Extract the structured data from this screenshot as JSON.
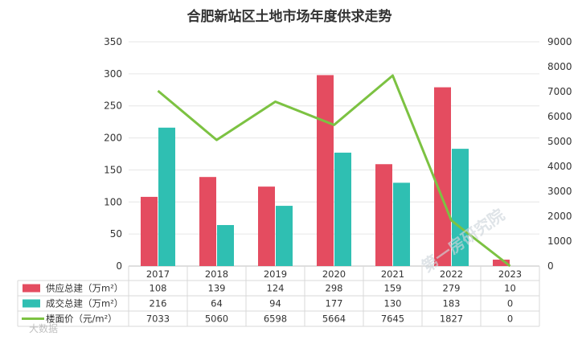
{
  "chart_data": {
    "type": "bar",
    "title": "合肥新站区土地市场年度供求走势",
    "categories": [
      "2017",
      "2018",
      "2019",
      "2020",
      "2021",
      "2022",
      "2023"
    ],
    "series": [
      {
        "name": "供应总建（万m²）",
        "type": "bar",
        "axis": "left",
        "color": "#e44c60",
        "values": [
          108,
          139,
          124,
          298,
          159,
          279,
          10
        ]
      },
      {
        "name": "成交总建（万m²）",
        "type": "bar",
        "axis": "left",
        "color": "#2fbfb2",
        "values": [
          216,
          64,
          94,
          177,
          130,
          183,
          0
        ]
      },
      {
        "name": "楼面价（元/m²）",
        "type": "line",
        "axis": "right",
        "color": "#7cc242",
        "values": [
          7033,
          5060,
          6598,
          5664,
          7645,
          1827,
          0
        ]
      }
    ],
    "y_left": {
      "min": 0,
      "max": 350,
      "ticks": [
        0,
        50,
        100,
        150,
        200,
        250,
        300,
        350
      ]
    },
    "y_right": {
      "min": 0,
      "max": 9000,
      "ticks": [
        0,
        1000,
        2000,
        3000,
        4000,
        5000,
        6000,
        7000,
        8000,
        9000
      ]
    },
    "grid": true,
    "legend": "data-table-below"
  },
  "watermarks": [
    "第一房研究院",
    "大数据"
  ]
}
